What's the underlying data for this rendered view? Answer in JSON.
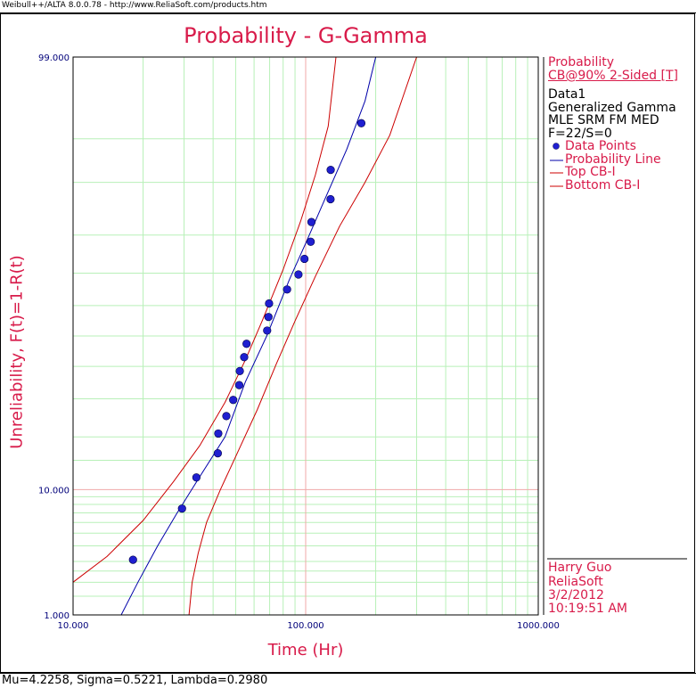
{
  "window": {
    "header_text": "Weibull++/ALTA 8.0.0.78 - http://www.ReliaSoft.com/products.htm",
    "footer_text": "Mu=4.2258, Sigma=0.5221, Lambda=0.2980"
  },
  "legend": {
    "title": "Probability",
    "cb_label": "CB@90% 2-Sided [T]",
    "data_name": "Data1",
    "model": "Generalized Gamma",
    "method": "MLE SRM FM MED",
    "counts": "F=22/S=0",
    "items": [
      {
        "label": "Data Points",
        "color": "#1f1fd0",
        "marker": "dot"
      },
      {
        "label": "Probability Line",
        "color": "#0000aa",
        "marker": "line"
      },
      {
        "label": "Top CB-I",
        "color": "#cc0000",
        "marker": "line"
      },
      {
        "label": "Bottom CB-I",
        "color": "#cc0000",
        "marker": "line"
      }
    ]
  },
  "signature": {
    "user": "Harry Guo",
    "company": "ReliaSoft",
    "date": "3/2/2012",
    "time": "10:19:51 AM"
  },
  "colors": {
    "title": "#d81b4a",
    "grid": "#b8f0b8",
    "ref_line": "#f0a8a8",
    "prob_line": "#0000aa",
    "cb_line": "#cc0000",
    "points": "#1f1fd0",
    "tick_text": "#00007a"
  },
  "chart_data": {
    "type": "scatter",
    "title": "Probability - G-Gamma",
    "xlabel": "Time (Hr)",
    "ylabel": "Unreliability, F(t)=1-R(t)",
    "x_scale": "log",
    "y_scale": "lognormal-probability",
    "xlim": [
      10,
      1000
    ],
    "ylim": [
      1,
      99
    ],
    "x_ticks": [
      {
        "v": 10,
        "label": "10.000"
      },
      {
        "v": 100,
        "label": "100.000"
      },
      {
        "v": 1000,
        "label": "1000.000"
      }
    ],
    "y_ticks": [
      {
        "v": 1,
        "label": "1.000"
      },
      {
        "v": 10,
        "label": "10.000"
      },
      {
        "v": 99,
        "label": "99.000"
      }
    ],
    "grid": true,
    "legend_position": "right",
    "series": [
      {
        "name": "Data Points",
        "points": [
          {
            "x": 18.1,
            "y": 3.1
          },
          {
            "x": 29.4,
            "y": 7.5
          },
          {
            "x": 33.9,
            "y": 11.9
          },
          {
            "x": 41.9,
            "y": 16.4
          },
          {
            "x": 42.1,
            "y": 20.8
          },
          {
            "x": 45.6,
            "y": 25.2
          },
          {
            "x": 48.8,
            "y": 29.7
          },
          {
            "x": 51.8,
            "y": 34.1
          },
          {
            "x": 52.1,
            "y": 38.5
          },
          {
            "x": 54.4,
            "y": 43.0
          },
          {
            "x": 55.7,
            "y": 47.4
          },
          {
            "x": 68.3,
            "y": 51.8
          },
          {
            "x": 69.2,
            "y": 56.3
          },
          {
            "x": 69.6,
            "y": 60.7
          },
          {
            "x": 83.2,
            "y": 65.1
          },
          {
            "x": 93.1,
            "y": 69.6
          },
          {
            "x": 98.8,
            "y": 74.0
          },
          {
            "x": 105.1,
            "y": 78.4
          },
          {
            "x": 105.9,
            "y": 82.9
          },
          {
            "x": 127.9,
            "y": 87.3
          },
          {
            "x": 128.1,
            "y": 91.7
          },
          {
            "x": 173.5,
            "y": 96.2
          }
        ]
      }
    ],
    "lines": [
      {
        "name": "Probability Line",
        "points": [
          [
            16.1,
            1
          ],
          [
            19.0,
            2
          ],
          [
            23.1,
            4
          ],
          [
            28.0,
            7
          ],
          [
            35.0,
            12
          ],
          [
            45.0,
            20
          ],
          [
            55.0,
            35
          ],
          [
            68.0,
            50
          ],
          [
            85.0,
            68
          ],
          [
            100.0,
            78
          ],
          [
            120.0,
            87
          ],
          [
            150.0,
            94
          ],
          [
            180.0,
            97.5
          ],
          [
            200.0,
            99
          ]
        ]
      },
      {
        "name": "Top CB-I",
        "points": [
          [
            10.0,
            2.0
          ],
          [
            14.0,
            3.3
          ],
          [
            20.0,
            6.2
          ],
          [
            27.0,
            11.2
          ],
          [
            35.0,
            18.0
          ],
          [
            45.0,
            29.0
          ],
          [
            55.0,
            42.0
          ],
          [
            65.0,
            55.0
          ],
          [
            80.0,
            71.0
          ],
          [
            95.0,
            83.0
          ],
          [
            110.0,
            91.0
          ],
          [
            125.0,
            96.0
          ],
          [
            135.0,
            99.0
          ]
        ]
      },
      {
        "name": "Bottom CB-I",
        "points": [
          [
            31.5,
            1.0
          ],
          [
            32.5,
            2.0
          ],
          [
            34.5,
            3.5
          ],
          [
            37.5,
            6.0
          ],
          [
            43.0,
            10.0
          ],
          [
            52.0,
            17.5
          ],
          [
            62.0,
            27.0
          ],
          [
            75.0,
            41.0
          ],
          [
            90.0,
            55.0
          ],
          [
            110.0,
            69.0
          ],
          [
            140.0,
            82.0
          ],
          [
            180.0,
            90.0
          ],
          [
            230.0,
            95.3
          ],
          [
            300.0,
            99.0
          ]
        ]
      }
    ]
  }
}
